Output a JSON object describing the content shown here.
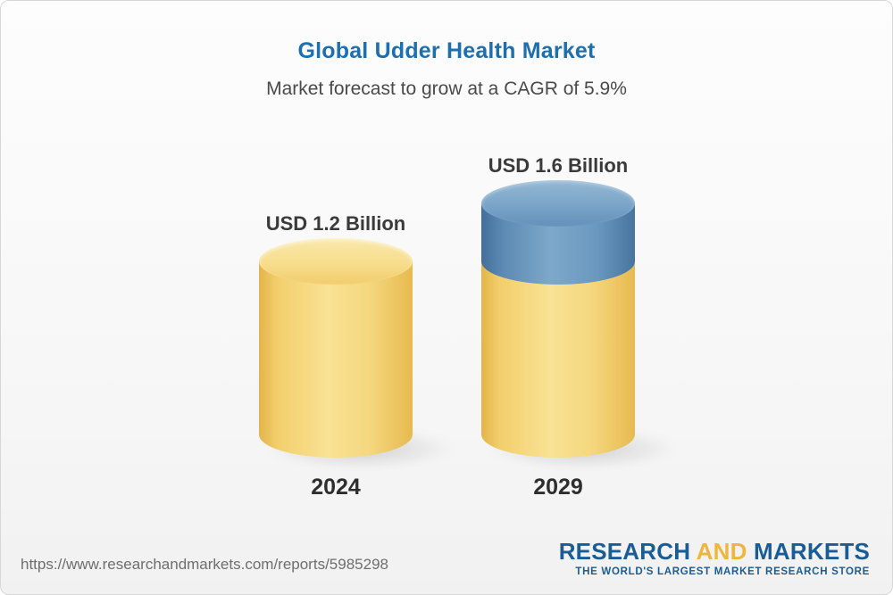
{
  "header": {
    "title": "Global Udder Health Market",
    "subtitle": "Market forecast to grow at a CAGR of 5.9%"
  },
  "chart_data": {
    "type": "bar",
    "subtype": "3d-cylinder",
    "title": "Global Udder Health Market",
    "subtitle": "Market forecast to grow at a CAGR of 5.9%",
    "cagr_pct": 5.9,
    "unit": "USD Billion",
    "categories": [
      "2024",
      "2029"
    ],
    "values": [
      1.2,
      1.6
    ],
    "value_labels": [
      "USD 1.2 Billion",
      "USD 1.6 Billion"
    ],
    "growth_segment": {
      "from": 1.2,
      "to": 1.6
    },
    "ylim": [
      0,
      1.8
    ],
    "grid": false,
    "legend": false,
    "colors": {
      "base_bar": "#f7d678",
      "growth_bar": "#6d9ac0",
      "title": "#1e6fad"
    }
  },
  "footer": {
    "url": "https://www.researchandmarkets.com/reports/5985298",
    "logo": {
      "text_research": "RESEARCH",
      "text_and": "AND",
      "text_markets": "MARKETS",
      "tagline": "THE WORLD'S LARGEST MARKET RESEARCH STORE",
      "color_blue": "#1a5c95",
      "color_gold": "#f0b53c"
    }
  }
}
